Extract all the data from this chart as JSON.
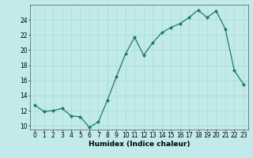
{
  "x": [
    0,
    1,
    2,
    3,
    4,
    5,
    6,
    7,
    8,
    9,
    10,
    11,
    12,
    13,
    14,
    15,
    16,
    17,
    18,
    19,
    20,
    21,
    22,
    23
  ],
  "y": [
    12.7,
    11.9,
    12.0,
    12.3,
    11.3,
    11.2,
    9.8,
    10.5,
    13.4,
    16.5,
    19.5,
    21.7,
    19.3,
    21.0,
    22.3,
    23.0,
    23.5,
    24.3,
    25.3,
    24.3,
    25.2,
    22.8,
    17.3,
    15.5
  ],
  "line_color": "#1a7a6a",
  "marker": "D",
  "marker_size": 2,
  "linewidth": 0.9,
  "bg_color": "#c2eaea",
  "grid_color": "#a8d8d8",
  "xlabel": "Humidex (Indice chaleur)",
  "xlim": [
    -0.5,
    23.5
  ],
  "ylim": [
    9.5,
    26.0
  ],
  "yticks": [
    10,
    12,
    14,
    16,
    18,
    20,
    22,
    24
  ],
  "xticks": [
    0,
    1,
    2,
    3,
    4,
    5,
    6,
    7,
    8,
    9,
    10,
    11,
    12,
    13,
    14,
    15,
    16,
    17,
    18,
    19,
    20,
    21,
    22,
    23
  ],
  "xlabel_fontsize": 6.5,
  "tick_fontsize": 5.5
}
